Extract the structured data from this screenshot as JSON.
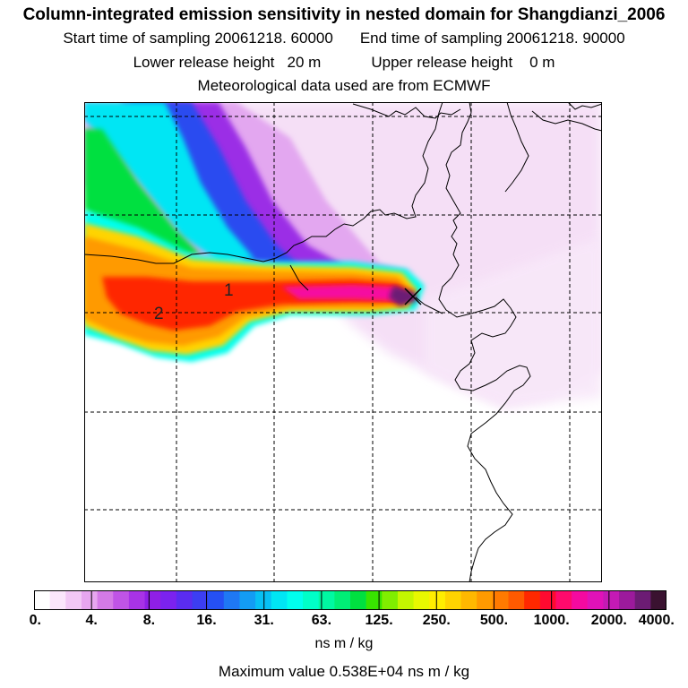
{
  "header": {
    "title": "Column-integrated emission sensitivity in nested domain for Shangdianzi_2006",
    "start_label": "Start time of sampling 20061218. 60000",
    "end_label": "End time of sampling 20061218. 90000",
    "lower_height_label": "Lower release height   20 m",
    "upper_height_label": "Upper release height    0 m",
    "met_label": "Meteorological data used are from ECMWF"
  },
  "map": {
    "labels": {
      "point_1": "1",
      "point_2": "2"
    },
    "release_marker": "x-marker-icon"
  },
  "legend": {
    "ticks": [
      "0.",
      "4.",
      "8.",
      "16.",
      "31.",
      "63.",
      "125.",
      "250.",
      "500.",
      "1000.",
      "2000.",
      "4000."
    ],
    "colors": [
      "#ffffff",
      "#fbe6fb",
      "#f2c8f5",
      "#e7a6ef",
      "#d47ae6",
      "#c054e6",
      "#a833e6",
      "#8f1fe6",
      "#7b22ee",
      "#5a2cf0",
      "#3c3ef2",
      "#2550f4",
      "#1f78f4",
      "#139cf4",
      "#07c0f4",
      "#00e6f4",
      "#00ffee",
      "#00ffc8",
      "#00f8a2",
      "#00ee76",
      "#00e040",
      "#38e400",
      "#80ee00",
      "#c4f600",
      "#e8f800",
      "#ffee00",
      "#ffd400",
      "#ffb800",
      "#ff9a00",
      "#ff7a00",
      "#ff5a00",
      "#ff2800",
      "#ff0a30",
      "#ff0a6c",
      "#f50aa0",
      "#e012b8",
      "#c41ab4",
      "#9c1a9c",
      "#6c1c74",
      "#3a1230"
    ],
    "units": "ns m / kg",
    "max_value": "Maximum value  0.538E+04 ns m / kg"
  }
}
